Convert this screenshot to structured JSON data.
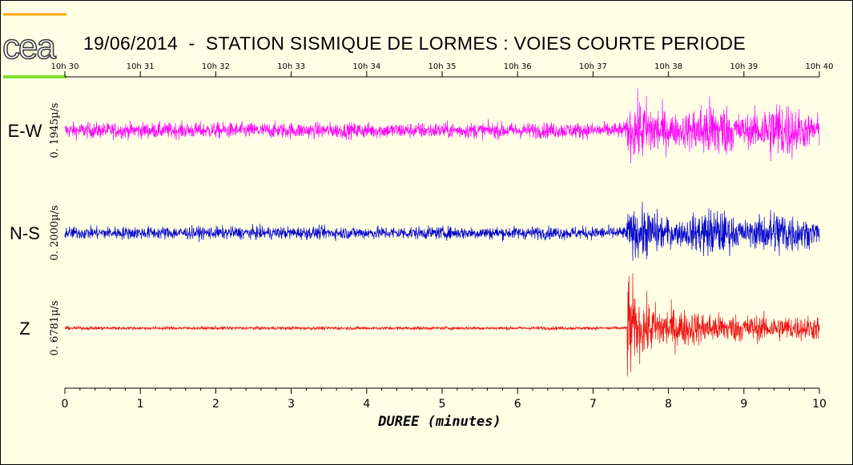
{
  "page": {
    "title": "19/06/2014  -  STATION SISMIQUE DE LORMES : VOIES COURTE PERIODE",
    "logo_text": "cea",
    "colors": {
      "background": "#ffffe6",
      "logo_orange": "#f5a800",
      "logo_green": "#7fe02a"
    }
  },
  "chart_data": {
    "type": "line",
    "xlabel": "DUREE  (minutes)",
    "xlim": [
      0,
      10
    ],
    "x_ticks": [
      "0",
      "1",
      "2",
      "3",
      "4",
      "5",
      "6",
      "7",
      "8",
      "9",
      "10"
    ],
    "time_ticks": [
      "10h 30",
      "10h 31",
      "10h 32",
      "10h 33",
      "10h 34",
      "10h 35",
      "10h 36",
      "10h 37",
      "10h 38",
      "10h 39",
      "10h 40"
    ],
    "event_onset_minutes": 7.45,
    "series": [
      {
        "name": "E-W",
        "scale": "0. 1945µ/s",
        "color": "#ff00ff",
        "pre_event_amplitude": 0.15,
        "post_event_amplitude": 0.6
      },
      {
        "name": "N-S",
        "scale": "0. 2000µ/s",
        "color": "#0000cc",
        "pre_event_amplitude": 0.14,
        "post_event_amplitude": 0.55
      },
      {
        "name": "Z",
        "scale": "0. 6781µ/s",
        "color": "#ee1111",
        "pre_event_amplitude": 0.03,
        "post_event_amplitude": 0.45
      }
    ]
  }
}
